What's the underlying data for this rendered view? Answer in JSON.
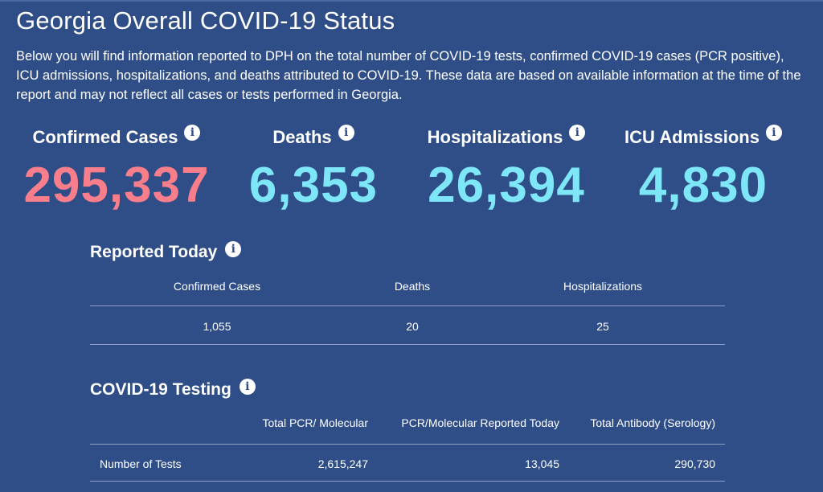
{
  "page": {
    "title": "Georgia Overall COVID-19 Status",
    "intro": "Below you will find information reported to DPH on the total number of COVID-19 tests, confirmed COVID-19 cases (PCR positive), ICU admissions, hospitalizations, and deaths attributed to COVID-19. These data are based on available information at the time of the report and may not reflect all cases or tests performed in Georgia."
  },
  "stats": [
    {
      "label": "Confirmed Cases",
      "value": "295,337",
      "color": "#f97e8b"
    },
    {
      "label": "Deaths",
      "value": "6,353",
      "color": "#7ee7f7"
    },
    {
      "label": "Hospitalizations",
      "value": "26,394",
      "color": "#7ee7f7"
    },
    {
      "label": "ICU Admissions",
      "value": "4,830",
      "color": "#7ee7f7"
    }
  ],
  "info_icon": {
    "glyph": "i",
    "icon": "info-icon"
  },
  "reported_today": {
    "title": "Reported Today",
    "headers": [
      "Confirmed Cases",
      "Deaths",
      "Hospitalizations"
    ],
    "values": [
      "1,055",
      "20",
      "25"
    ]
  },
  "testing": {
    "title": "COVID-19 Testing",
    "headers": [
      "Total PCR/ Molecular",
      "PCR/Molecular Reported Today",
      "Total Antibody (Serology)"
    ],
    "row": {
      "label": "Number of Tests",
      "values": [
        "2,615,247",
        "13,045",
        "290,730"
      ]
    }
  },
  "colors": {
    "background": "#2f4e87",
    "accent_pink": "#f97e8b",
    "accent_cyan": "#7ee7f7"
  }
}
